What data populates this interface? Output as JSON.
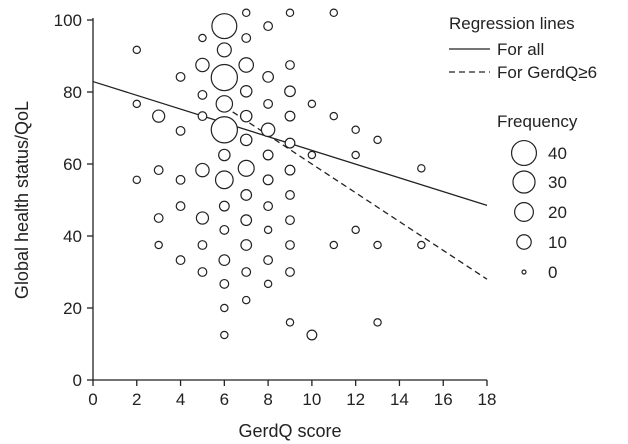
{
  "chart_data": {
    "type": "scatter",
    "title": "",
    "xlabel": "GerdQ score",
    "ylabel": "Global health status/QoL",
    "xlim": [
      0,
      18
    ],
    "ylim": [
      0,
      100
    ],
    "xticks": [
      0,
      2,
      4,
      6,
      8,
      10,
      12,
      14,
      16,
      18
    ],
    "yticks": [
      0,
      20,
      40,
      60,
      80,
      100
    ],
    "grid": false,
    "legend_placement": "right",
    "regression_legend_title": "Regression lines",
    "regression_lines": [
      {
        "name": "For all",
        "style": "solid",
        "x": [
          0,
          18
        ],
        "y": [
          82.9,
          48.5
        ]
      },
      {
        "name": "For GerdQ≥6",
        "style": "dashed",
        "x": [
          6,
          18
        ],
        "y": [
          76,
          28
        ]
      }
    ],
    "size_legend": {
      "title": "Frequency",
      "entries": [
        {
          "label": "40",
          "value": 40
        },
        {
          "label": "30",
          "value": 30
        },
        {
          "label": "20",
          "value": 20
        },
        {
          "label": "10",
          "value": 10
        },
        {
          "label": "0",
          "value": 0
        }
      ]
    },
    "points": [
      {
        "x": 2,
        "y": 91.7,
        "f": 1
      },
      {
        "x": 2,
        "y": 76.7,
        "f": 1
      },
      {
        "x": 2,
        "y": 55.6,
        "f": 1
      },
      {
        "x": 3,
        "y": 73.3,
        "f": 6
      },
      {
        "x": 3,
        "y": 58.3,
        "f": 2
      },
      {
        "x": 3,
        "y": 45,
        "f": 2
      },
      {
        "x": 3,
        "y": 37.5,
        "f": 1
      },
      {
        "x": 4,
        "y": 84.2,
        "f": 2
      },
      {
        "x": 4,
        "y": 69.2,
        "f": 2
      },
      {
        "x": 4,
        "y": 55.6,
        "f": 2
      },
      {
        "x": 4,
        "y": 48.3,
        "f": 2
      },
      {
        "x": 4,
        "y": 33.3,
        "f": 2
      },
      {
        "x": 5,
        "y": 95,
        "f": 1
      },
      {
        "x": 5,
        "y": 87.5,
        "f": 8
      },
      {
        "x": 5,
        "y": 79.2,
        "f": 2
      },
      {
        "x": 5,
        "y": 73.3,
        "f": 2
      },
      {
        "x": 5,
        "y": 58.3,
        "f": 8
      },
      {
        "x": 5,
        "y": 45,
        "f": 6
      },
      {
        "x": 5,
        "y": 37.5,
        "f": 2
      },
      {
        "x": 5,
        "y": 30,
        "f": 2
      },
      {
        "x": 6,
        "y": 98.3,
        "f": 40
      },
      {
        "x": 6,
        "y": 91.7,
        "f": 9
      },
      {
        "x": 6,
        "y": 84,
        "f": 45
      },
      {
        "x": 6,
        "y": 76.7,
        "f": 14
      },
      {
        "x": 6,
        "y": 69.5,
        "f": 45
      },
      {
        "x": 6,
        "y": 62.5,
        "f": 5
      },
      {
        "x": 6,
        "y": 55.6,
        "f": 17
      },
      {
        "x": 6,
        "y": 48.3,
        "f": 3
      },
      {
        "x": 6,
        "y": 41.7,
        "f": 2
      },
      {
        "x": 6,
        "y": 33.3,
        "f": 4
      },
      {
        "x": 6,
        "y": 26.7,
        "f": 2
      },
      {
        "x": 6,
        "y": 20,
        "f": 1
      },
      {
        "x": 6,
        "y": 12.5,
        "f": 1
      },
      {
        "x": 7,
        "y": 102,
        "f": 1
      },
      {
        "x": 7,
        "y": 95,
        "f": 2
      },
      {
        "x": 7,
        "y": 87.5,
        "f": 10
      },
      {
        "x": 7,
        "y": 80.2,
        "f": 5
      },
      {
        "x": 7,
        "y": 73.3,
        "f": 5
      },
      {
        "x": 7,
        "y": 66.7,
        "f": 5
      },
      {
        "x": 7,
        "y": 58.8,
        "f": 13
      },
      {
        "x": 7,
        "y": 51.4,
        "f": 4
      },
      {
        "x": 7,
        "y": 44.4,
        "f": 4
      },
      {
        "x": 7,
        "y": 37.5,
        "f": 4
      },
      {
        "x": 7,
        "y": 30,
        "f": 2
      },
      {
        "x": 7,
        "y": 22.2,
        "f": 1
      },
      {
        "x": 8,
        "y": 98.3,
        "f": 2
      },
      {
        "x": 8,
        "y": 84.2,
        "f": 4
      },
      {
        "x": 8,
        "y": 76.7,
        "f": 2
      },
      {
        "x": 8,
        "y": 69.5,
        "f": 8
      },
      {
        "x": 8,
        "y": 62.5,
        "f": 3
      },
      {
        "x": 8,
        "y": 55.6,
        "f": 3
      },
      {
        "x": 8,
        "y": 48.3,
        "f": 2
      },
      {
        "x": 8,
        "y": 41.7,
        "f": 1
      },
      {
        "x": 8,
        "y": 33.3,
        "f": 2
      },
      {
        "x": 8,
        "y": 26.7,
        "f": 1
      },
      {
        "x": 9,
        "y": 102,
        "f": 1
      },
      {
        "x": 9,
        "y": 87.5,
        "f": 2
      },
      {
        "x": 9,
        "y": 80.2,
        "f": 4
      },
      {
        "x": 9,
        "y": 73.3,
        "f": 3
      },
      {
        "x": 9,
        "y": 65.8,
        "f": 3
      },
      {
        "x": 9,
        "y": 58.3,
        "f": 3
      },
      {
        "x": 9,
        "y": 51.4,
        "f": 2
      },
      {
        "x": 9,
        "y": 44.4,
        "f": 2
      },
      {
        "x": 9,
        "y": 37.5,
        "f": 2
      },
      {
        "x": 9,
        "y": 30,
        "f": 2
      },
      {
        "x": 9,
        "y": 16,
        "f": 1
      },
      {
        "x": 10,
        "y": 76.7,
        "f": 1
      },
      {
        "x": 10,
        "y": 62.5,
        "f": 1
      },
      {
        "x": 10,
        "y": 12.5,
        "f": 3
      },
      {
        "x": 11,
        "y": 102,
        "f": 1
      },
      {
        "x": 11,
        "y": 73.3,
        "f": 1
      },
      {
        "x": 11,
        "y": 37.5,
        "f": 1
      },
      {
        "x": 12,
        "y": 69.5,
        "f": 1
      },
      {
        "x": 12,
        "y": 62.5,
        "f": 1
      },
      {
        "x": 12,
        "y": 41.7,
        "f": 1
      },
      {
        "x": 13,
        "y": 66.7,
        "f": 1
      },
      {
        "x": 13,
        "y": 37.5,
        "f": 1
      },
      {
        "x": 13,
        "y": 16,
        "f": 1
      },
      {
        "x": 15,
        "y": 58.8,
        "f": 1
      },
      {
        "x": 15,
        "y": 37.5,
        "f": 1
      }
    ]
  }
}
